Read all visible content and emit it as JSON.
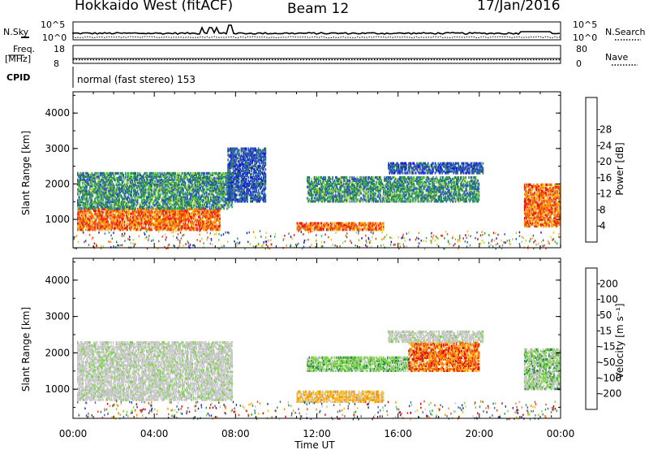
{
  "header": {
    "station": "Hokkaido West (fitACF)",
    "beam": "Beam 12",
    "date": "17/Jan/2016"
  },
  "panel_labels": {
    "nsky": "N.Sky",
    "nsky_hi": "10^5",
    "nsky_lo": "10^0",
    "nsearch": "N.Search",
    "nsearch_hi": "10^5",
    "nsearch_lo": "10^0",
    "freq_top": "Freq.",
    "freq_unit": "[MHz]",
    "freq_hi": "18",
    "freq_lo": "8",
    "nave": "Nave",
    "nave_hi": "80",
    "nave_lo": "0",
    "cpid": "CPID",
    "cpid_value": "normal (fast stereo) 153"
  },
  "chart_data": [
    {
      "type": "heatmap",
      "name": "power",
      "ylabel": "Slant Range [km]",
      "yticks": [
        "1000",
        "2000",
        "3000",
        "4000"
      ],
      "yrange": [
        200,
        4600
      ],
      "xrange": [
        0,
        24
      ],
      "colorbar": {
        "label": "Power [dB]",
        "ticks": [
          "4",
          "8",
          "12",
          "16",
          "20",
          "24",
          "28"
        ],
        "colors": [
          "#1414d2",
          "#2a55b8",
          "#2e8a4e",
          "#3ab050",
          "#a8d84a",
          "#f6c020",
          "#ff8c00",
          "#f04010",
          "#e01010"
        ]
      },
      "echo_regions": [
        {
          "t0": 0.2,
          "t1": 7.2,
          "r0": 700,
          "r1": 1300,
          "level": "high"
        },
        {
          "t0": 0.2,
          "t1": 7.8,
          "r0": 1300,
          "r1": 2300,
          "level": "mid"
        },
        {
          "t0": 7.6,
          "t1": 9.5,
          "r0": 1500,
          "r1": 3000,
          "level": "low"
        },
        {
          "t0": 11.0,
          "t1": 15.3,
          "r0": 700,
          "r1": 900,
          "level": "high"
        },
        {
          "t0": 11.5,
          "t1": 20.0,
          "r0": 1500,
          "r1": 2200,
          "level": "mid"
        },
        {
          "t0": 15.5,
          "t1": 20.2,
          "r0": 2300,
          "r1": 2600,
          "level": "low"
        },
        {
          "t0": 22.2,
          "t1": 24.0,
          "r0": 800,
          "r1": 2000,
          "level": "high"
        }
      ]
    },
    {
      "type": "heatmap",
      "name": "velocity",
      "ylabel": "Slant Range [km]",
      "yticks": [
        "1000",
        "2000",
        "3000",
        "4000"
      ],
      "yrange": [
        200,
        4600
      ],
      "xrange": [
        0,
        24
      ],
      "xticks": [
        "00:00",
        "04:00",
        "08:00",
        "12:00",
        "16:00",
        "20:00",
        "00:00"
      ],
      "xlabel": "Time UT",
      "colorbar": {
        "label": "Velocity [m s⁻¹]",
        "ticks": [
          "200",
          "100",
          "50",
          "15",
          "-15",
          "-50",
          "-100",
          "-200"
        ],
        "colors": [
          "#1a2aa8",
          "#2e64b8",
          "#2e8a4e",
          "#7cd04a",
          "#c8c8c8",
          "#f7b820",
          "#ff8800",
          "#f04010",
          "#e00000"
        ]
      },
      "echo_regions": [
        {
          "t0": 0.2,
          "t1": 7.8,
          "r0": 700,
          "r1": 2300,
          "level": "grey"
        },
        {
          "t0": 11.0,
          "t1": 15.3,
          "r0": 650,
          "r1": 950,
          "level": "orange-yellow"
        },
        {
          "t0": 11.5,
          "t1": 16.5,
          "r0": 1500,
          "r1": 1900,
          "level": "green"
        },
        {
          "t0": 16.5,
          "t1": 20.0,
          "r0": 1500,
          "r1": 2300,
          "level": "orange-red"
        },
        {
          "t0": 15.5,
          "t1": 20.2,
          "r0": 2300,
          "r1": 2600,
          "level": "grey"
        },
        {
          "t0": 22.2,
          "t1": 24.0,
          "r0": 1000,
          "r1": 2100,
          "level": "grey-green"
        }
      ]
    }
  ]
}
